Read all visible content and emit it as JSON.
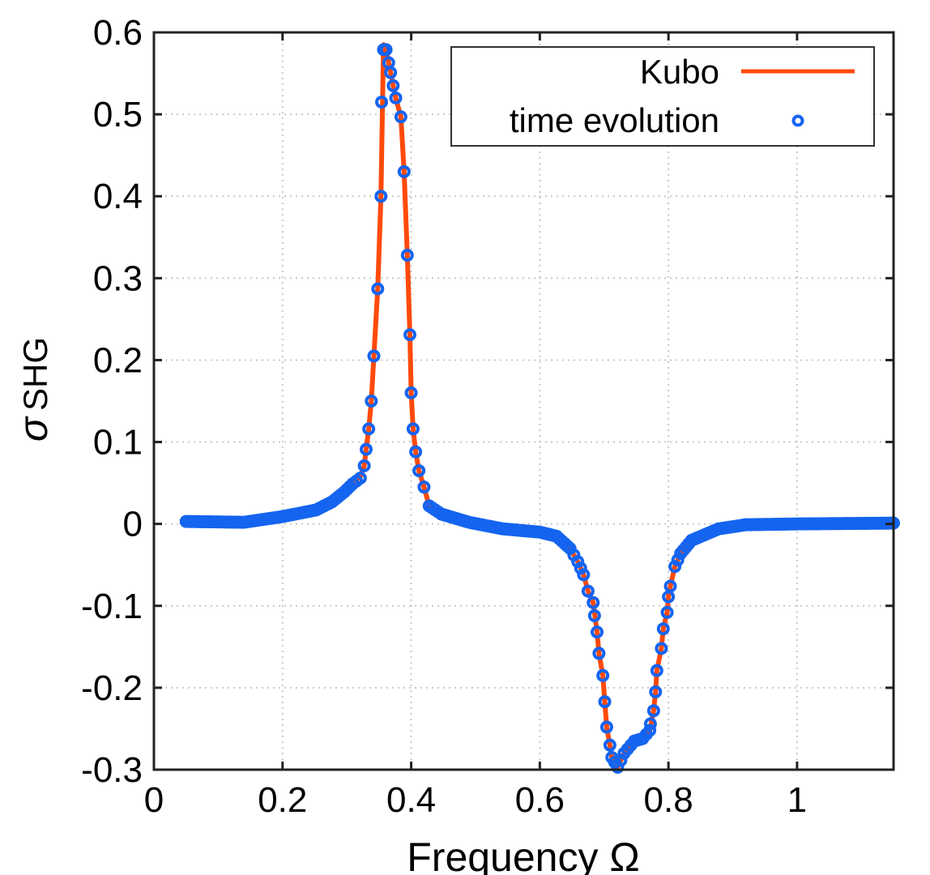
{
  "chart_data": {
    "type": "line",
    "xlabel": "Frequency  Ω",
    "ylabel_main": "σ",
    "ylabel_sub": "SHG",
    "xlim": [
      0,
      1.15
    ],
    "ylim": [
      -0.3,
      0.6
    ],
    "xticks": [
      0,
      0.2,
      0.4,
      0.6,
      0.8,
      1
    ],
    "xtick_labels": [
      "0",
      "0.2",
      "0.4",
      "0.6",
      "0.8",
      "1"
    ],
    "yticks": [
      -0.3,
      -0.2,
      -0.1,
      0,
      0.1,
      0.2,
      0.3,
      0.4,
      0.5,
      0.6
    ],
    "ytick_labels": [
      "-0.3",
      "-0.2",
      "-0.1",
      "0",
      "0.1",
      "0.2",
      "0.3",
      "0.4",
      "0.5",
      "0.6"
    ],
    "grid": true,
    "legend_position": "top-right",
    "series": [
      {
        "name": "Kubo",
        "style": "line",
        "color": "#FF4A0A",
        "x": [
          0.05,
          0.14,
          0.2,
          0.252,
          0.277,
          0.296,
          0.309,
          0.321,
          0.327,
          0.33,
          0.334,
          0.338,
          0.342,
          0.348,
          0.353,
          0.357,
          0.361,
          0.365,
          0.368,
          0.372,
          0.376,
          0.384,
          0.389,
          0.394,
          0.398,
          0.4,
          0.403,
          0.407,
          0.412,
          0.42,
          0.428,
          0.447,
          0.49,
          0.542,
          0.6,
          0.626,
          0.647,
          0.659,
          0.668,
          0.675,
          0.683,
          0.689,
          0.692,
          0.698,
          0.701,
          0.704,
          0.709,
          0.712,
          0.721,
          0.731,
          0.747,
          0.76,
          0.771,
          0.777,
          0.78,
          0.782,
          0.789,
          0.792,
          0.798,
          0.8,
          0.803,
          0.81,
          0.819,
          0.836,
          0.878,
          0.92,
          1.0,
          1.15
        ],
        "y": [
          0.003,
          0.004,
          0.012,
          0.02,
          0.029,
          0.04,
          0.05,
          0.058,
          0.071,
          0.091,
          0.116,
          0.15,
          0.205,
          0.287,
          0.4,
          0.585,
          0.579,
          0.563,
          0.551,
          0.535,
          0.52,
          0.497,
          0.43,
          0.328,
          0.231,
          0.16,
          0.116,
          0.088,
          0.065,
          0.045,
          0.022,
          0.012,
          0.002,
          -0.006,
          -0.01,
          -0.015,
          -0.03,
          -0.046,
          -0.062,
          -0.082,
          -0.096,
          -0.132,
          -0.158,
          -0.185,
          -0.217,
          -0.248,
          -0.27,
          -0.285,
          -0.297,
          -0.28,
          -0.265,
          -0.262,
          -0.252,
          -0.228,
          -0.205,
          -0.179,
          -0.152,
          -0.128,
          -0.108,
          -0.089,
          -0.076,
          -0.052,
          -0.036,
          -0.02,
          -0.006,
          -0.001,
          0.0,
          0.001
        ]
      },
      {
        "name": "time evolution",
        "style": "markers",
        "color": "#1464F0",
        "x": [
          0.05,
          0.14,
          0.2,
          0.252,
          0.277,
          0.296,
          0.309,
          0.321,
          0.327,
          0.33,
          0.334,
          0.338,
          0.342,
          0.348,
          0.353,
          0.354,
          0.357,
          0.361,
          0.365,
          0.368,
          0.372,
          0.376,
          0.384,
          0.389,
          0.394,
          0.398,
          0.4,
          0.403,
          0.407,
          0.412,
          0.42,
          0.428,
          0.447,
          0.49,
          0.542,
          0.6,
          0.626,
          0.647,
          0.659,
          0.668,
          0.675,
          0.683,
          0.685,
          0.689,
          0.692,
          0.698,
          0.701,
          0.704,
          0.709,
          0.712,
          0.721,
          0.731,
          0.747,
          0.76,
          0.771,
          0.772,
          0.777,
          0.78,
          0.782,
          0.789,
          0.792,
          0.798,
          0.8,
          0.803,
          0.81,
          0.819,
          0.836,
          0.878,
          0.92,
          1.0,
          1.15
        ],
        "y": [
          0.003,
          0.002,
          0.009,
          0.017,
          0.027,
          0.039,
          0.049,
          0.056,
          0.071,
          0.091,
          0.116,
          0.15,
          0.205,
          0.287,
          0.4,
          0.515,
          0.579,
          0.579,
          0.563,
          0.551,
          0.535,
          0.52,
          0.497,
          0.43,
          0.328,
          0.231,
          0.16,
          0.116,
          0.088,
          0.065,
          0.045,
          0.022,
          0.012,
          0.002,
          -0.006,
          -0.01,
          -0.015,
          -0.03,
          -0.046,
          -0.062,
          -0.082,
          -0.096,
          -0.112,
          -0.132,
          -0.158,
          -0.185,
          -0.217,
          -0.248,
          -0.27,
          -0.285,
          -0.297,
          -0.28,
          -0.265,
          -0.262,
          -0.252,
          -0.244,
          -0.228,
          -0.205,
          -0.179,
          -0.152,
          -0.128,
          -0.108,
          -0.089,
          -0.076,
          -0.052,
          -0.036,
          -0.02,
          -0.006,
          -0.001,
          0.0,
          0.001
        ]
      }
    ]
  }
}
